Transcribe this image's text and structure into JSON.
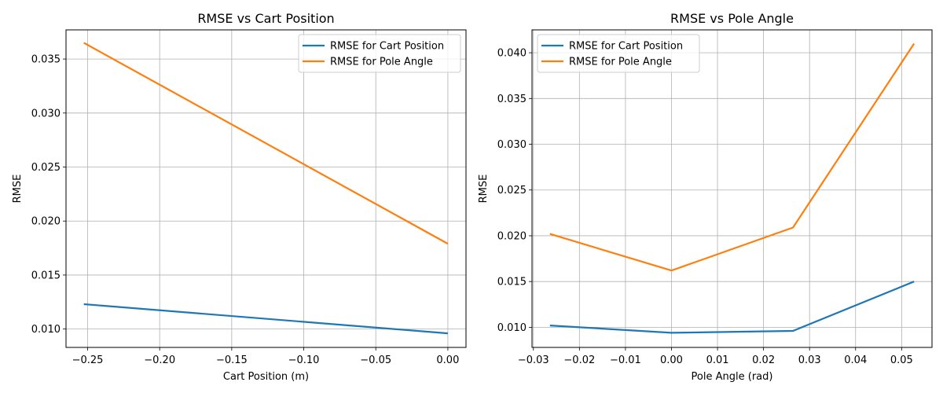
{
  "chart_data": [
    {
      "type": "line",
      "title": "RMSE vs Cart Position",
      "xlabel": "Cart Position (m)",
      "ylabel": "RMSE",
      "xlim": [
        -0.265,
        0.0126
      ],
      "ylim": [
        0.0083,
        0.0377
      ],
      "xticks": [
        -0.25,
        -0.2,
        -0.15,
        -0.1,
        -0.05,
        0.0
      ],
      "xtick_labels": [
        "−0.25",
        "−0.20",
        "−0.15",
        "−0.10",
        "−0.05",
        "0.00"
      ],
      "yticks": [
        0.01,
        0.015,
        0.02,
        0.025,
        0.03,
        0.035
      ],
      "ytick_labels": [
        "0.010",
        "0.015",
        "0.020",
        "0.025",
        "0.030",
        "0.035"
      ],
      "grid": true,
      "legend": "top-right",
      "series": [
        {
          "name": "RMSE for Cart Position",
          "color": "#1f77b4",
          "x": [
            -0.2526,
            0.0
          ],
          "y": [
            0.0123,
            0.0096
          ]
        },
        {
          "name": "RMSE for Pole Angle",
          "color": "#ff7f0e",
          "x": [
            -0.2526,
            0.0
          ],
          "y": [
            0.0365,
            0.0179
          ]
        }
      ]
    },
    {
      "type": "line",
      "title": "RMSE vs Pole Angle",
      "xlabel": "Pole Angle (rad)",
      "ylabel": "RMSE",
      "xlim": [
        -0.0303,
        0.0566
      ],
      "ylim": [
        0.0078,
        0.0425
      ],
      "xticks": [
        -0.03,
        -0.02,
        -0.01,
        0.0,
        0.01,
        0.02,
        0.03,
        0.04,
        0.05
      ],
      "xtick_labels": [
        "−0.03",
        "−0.02",
        "−0.01",
        "0.00",
        "0.01",
        "0.02",
        "0.03",
        "0.04",
        "0.05"
      ],
      "yticks": [
        0.01,
        0.015,
        0.02,
        0.025,
        0.03,
        0.035,
        0.04
      ],
      "ytick_labels": [
        "0.010",
        "0.015",
        "0.020",
        "0.025",
        "0.030",
        "0.035",
        "0.040"
      ],
      "grid": true,
      "legend": "top-left",
      "series": [
        {
          "name": "RMSE for Cart Position",
          "color": "#1f77b4",
          "x": [
            -0.0264,
            0.0,
            0.0264,
            0.0527
          ],
          "y": [
            0.0102,
            0.0094,
            0.0096,
            0.015
          ]
        },
        {
          "name": "RMSE for Pole Angle",
          "color": "#ff7f0e",
          "x": [
            -0.0264,
            0.0,
            0.0264,
            0.0527
          ],
          "y": [
            0.0202,
            0.0162,
            0.0209,
            0.041
          ]
        }
      ]
    }
  ]
}
